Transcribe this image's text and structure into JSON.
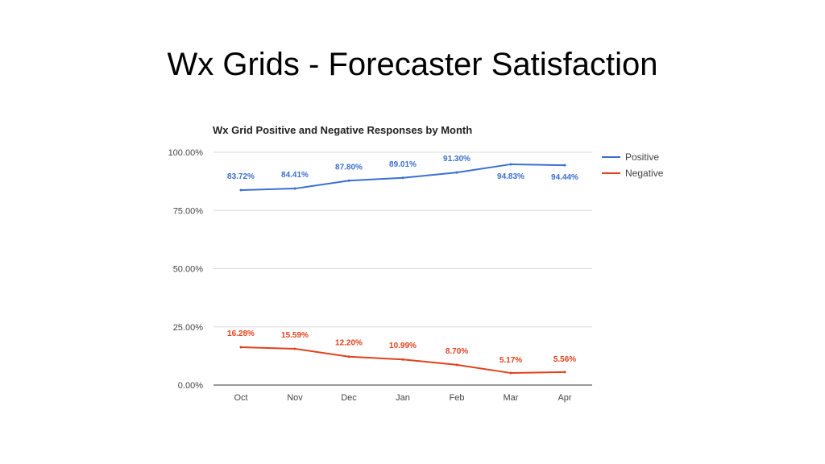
{
  "slide": {
    "title": "Wx Grids - Forecaster Satisfaction"
  },
  "chart_data": {
    "type": "line",
    "title": "Wx Grid Positive and Negative Responses by Month",
    "xlabel": "",
    "ylabel": "",
    "categories": [
      "Oct",
      "Nov",
      "Dec",
      "Jan",
      "Feb",
      "Mar",
      "Apr"
    ],
    "ylim": [
      0,
      100
    ],
    "yticks": [
      "0.00%",
      "25.00%",
      "50.00%",
      "75.00%",
      "100.00%"
    ],
    "grid": true,
    "legend_position": "right",
    "series": [
      {
        "name": "Positive",
        "color": "#3b6fd0",
        "values": [
          83.72,
          84.41,
          87.8,
          89.01,
          91.3,
          94.83,
          94.44
        ],
        "labels": [
          "83.72%",
          "84.41%",
          "87.80%",
          "89.01%",
          "91.30%",
          "94.83%",
          "94.44%"
        ]
      },
      {
        "name": "Negative",
        "color": "#e2401c",
        "values": [
          16.28,
          15.59,
          12.2,
          10.99,
          8.7,
          5.17,
          5.56
        ],
        "labels": [
          "16.28%",
          "15.59%",
          "12.20%",
          "10.99%",
          "8.70%",
          "5.17%",
          "5.56%"
        ]
      }
    ]
  }
}
